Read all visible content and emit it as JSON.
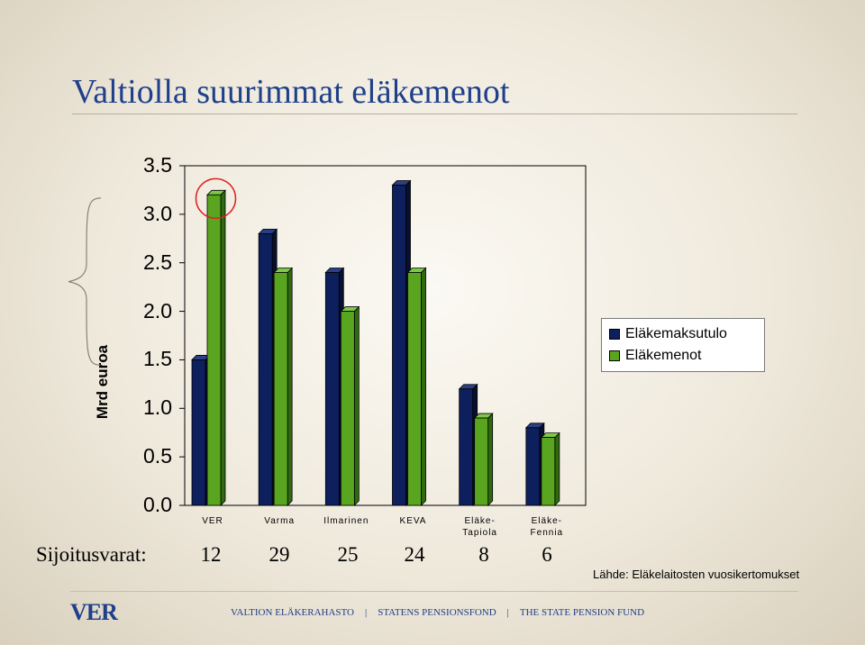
{
  "slide": {
    "title": "Valtiolla suurimmat eläkemenot",
    "sijoitusvarat_label": "Sijoitusvarat:",
    "sijoitusvarat": [
      "12",
      "29",
      "25",
      "24",
      "8",
      "6"
    ],
    "source": "Lähde: Eläkelaitosten vuosikertomukset",
    "logo": "VER",
    "footer": [
      "VALTION ELÄKERAHASTO",
      "STATENS PENSIONSFOND",
      "THE STATE PENSION FUND"
    ],
    "footer_sep": "|"
  },
  "colors": {
    "navy": "#0d1f5c",
    "green": "#5aa51f",
    "highlight": "#e02020",
    "title": "#1e3f8a"
  },
  "chart_data": {
    "type": "bar",
    "ylabel": "Mrd euroa",
    "ylim": [
      0,
      3.5
    ],
    "yticks": [
      "0.0",
      "0.5",
      "1.0",
      "1.5",
      "2.0",
      "2.5",
      "3.0",
      "3.5"
    ],
    "categories": [
      [
        "VER"
      ],
      [
        "Varma"
      ],
      [
        "Ilmarinen"
      ],
      [
        "KEVA"
      ],
      [
        "Eläke-",
        "Tapiola"
      ],
      [
        "Eläke-",
        "Fennia"
      ]
    ],
    "series": [
      {
        "name": "Eläkemaksutulo",
        "values": [
          1.5,
          2.8,
          2.4,
          3.3,
          1.2,
          0.8
        ]
      },
      {
        "name": "Eläkemenot",
        "values": [
          3.2,
          2.4,
          2.0,
          2.4,
          0.9,
          0.7
        ]
      }
    ],
    "legend": "right",
    "annotations": [
      "circle highlighting VER Eläkemenot bar",
      "brace spanning 1.5–3.0"
    ]
  }
}
